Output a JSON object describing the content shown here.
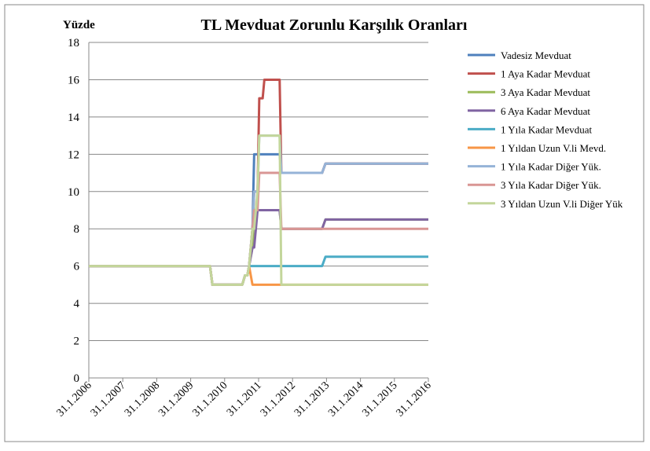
{
  "chart_data": {
    "type": "line",
    "title": "TL Mevduat Zorunlu Karşılık Oranları",
    "y_label": "Yüzde",
    "x": [
      2006.08,
      2009.65,
      2009.72,
      2010.6,
      2010.68,
      2010.75,
      2010.8,
      2010.9,
      2010.95,
      2011.05,
      2011.1,
      2011.2,
      2011.25,
      2011.7,
      2011.75,
      2012.95,
      2013.05,
      2016.08
    ],
    "xlim": [
      2006.08,
      2016.08
    ],
    "xticks": [
      {
        "value": 2006.08,
        "label": "31.1.2006"
      },
      {
        "value": 2007.08,
        "label": "31.1.2007"
      },
      {
        "value": 2008.08,
        "label": "31.1.2008"
      },
      {
        "value": 2009.08,
        "label": "31.1.2009"
      },
      {
        "value": 2010.08,
        "label": "31.1.2010"
      },
      {
        "value": 2011.08,
        "label": "31.1.2011"
      },
      {
        "value": 2012.08,
        "label": "31.1.2012"
      },
      {
        "value": 2013.08,
        "label": "31.1.2013"
      },
      {
        "value": 2014.08,
        "label": "31.1.2014"
      },
      {
        "value": 2015.08,
        "label": "31.1.2015"
      },
      {
        "value": 2016.08,
        "label": "31.1.2016"
      }
    ],
    "ylim": [
      0,
      18
    ],
    "yticks": [
      0,
      2,
      4,
      6,
      8,
      10,
      12,
      14,
      16,
      18
    ],
    "grid": true,
    "legend": "right",
    "series": [
      {
        "name": "Vadesiz Mevduat",
        "color": "#4f81bd",
        "values": [
          6,
          6,
          5,
          5,
          5.5,
          5.5,
          6,
          8,
          12,
          12,
          12,
          12,
          12,
          12,
          11,
          11,
          11.5,
          11.5
        ]
      },
      {
        "name": "1 Aya Kadar Mevduat",
        "color": "#c0504d",
        "values": [
          6,
          6,
          5,
          5,
          5.5,
          5.5,
          6,
          8,
          10,
          10,
          15,
          15,
          16,
          16,
          11,
          11,
          11.5,
          11.5
        ]
      },
      {
        "name": "3 Aya Kadar Mevduat",
        "color": "#9bbb59",
        "values": [
          6,
          6,
          5,
          5,
          5.5,
          5.5,
          6,
          7,
          9,
          9,
          9,
          9,
          9,
          9,
          8,
          8,
          8.5,
          8.5
        ]
      },
      {
        "name": "6 Aya Kadar Mevduat",
        "color": "#8064a2",
        "values": [
          6,
          6,
          5,
          5,
          5.5,
          5.5,
          6,
          7,
          7,
          9,
          9,
          9,
          9,
          9,
          8,
          8,
          8.5,
          8.5
        ]
      },
      {
        "name": "1 Yıla Kadar Mevduat",
        "color": "#4bacc6",
        "values": [
          6,
          6,
          5,
          5,
          5.5,
          5.5,
          6,
          6,
          6,
          6,
          6,
          6,
          6,
          6,
          6,
          6,
          6.5,
          6.5
        ]
      },
      {
        "name": "1 Yıldan Uzun V.li Mevd.",
        "color": "#f79646",
        "values": [
          6,
          6,
          5,
          5,
          5.5,
          5.5,
          6,
          5,
          5,
          5,
          5,
          5,
          5,
          5,
          5,
          5,
          5,
          5
        ]
      },
      {
        "name": "1 Yıla Kadar Diğer Yük.",
        "color": "#95b3d7",
        "values": [
          6,
          6,
          5,
          5,
          5.5,
          5.5,
          6,
          8,
          10,
          10,
          13,
          13,
          13,
          13,
          11,
          11,
          11.5,
          11.5
        ]
      },
      {
        "name": "3 Yıla Kadar Diğer Yük.",
        "color": "#d99694",
        "values": [
          6,
          6,
          5,
          5,
          5.5,
          5.5,
          6,
          8,
          9,
          9,
          11,
          11,
          11,
          11,
          8,
          8,
          8,
          8
        ]
      },
      {
        "name": "3 Yıldan Uzun V.li Diğer Yük",
        "color": "#c3d69b",
        "values": [
          6,
          6,
          5,
          5,
          5.5,
          5.5,
          6,
          8,
          8,
          10,
          13,
          13,
          13,
          13,
          5,
          5,
          5,
          5
        ]
      }
    ]
  }
}
